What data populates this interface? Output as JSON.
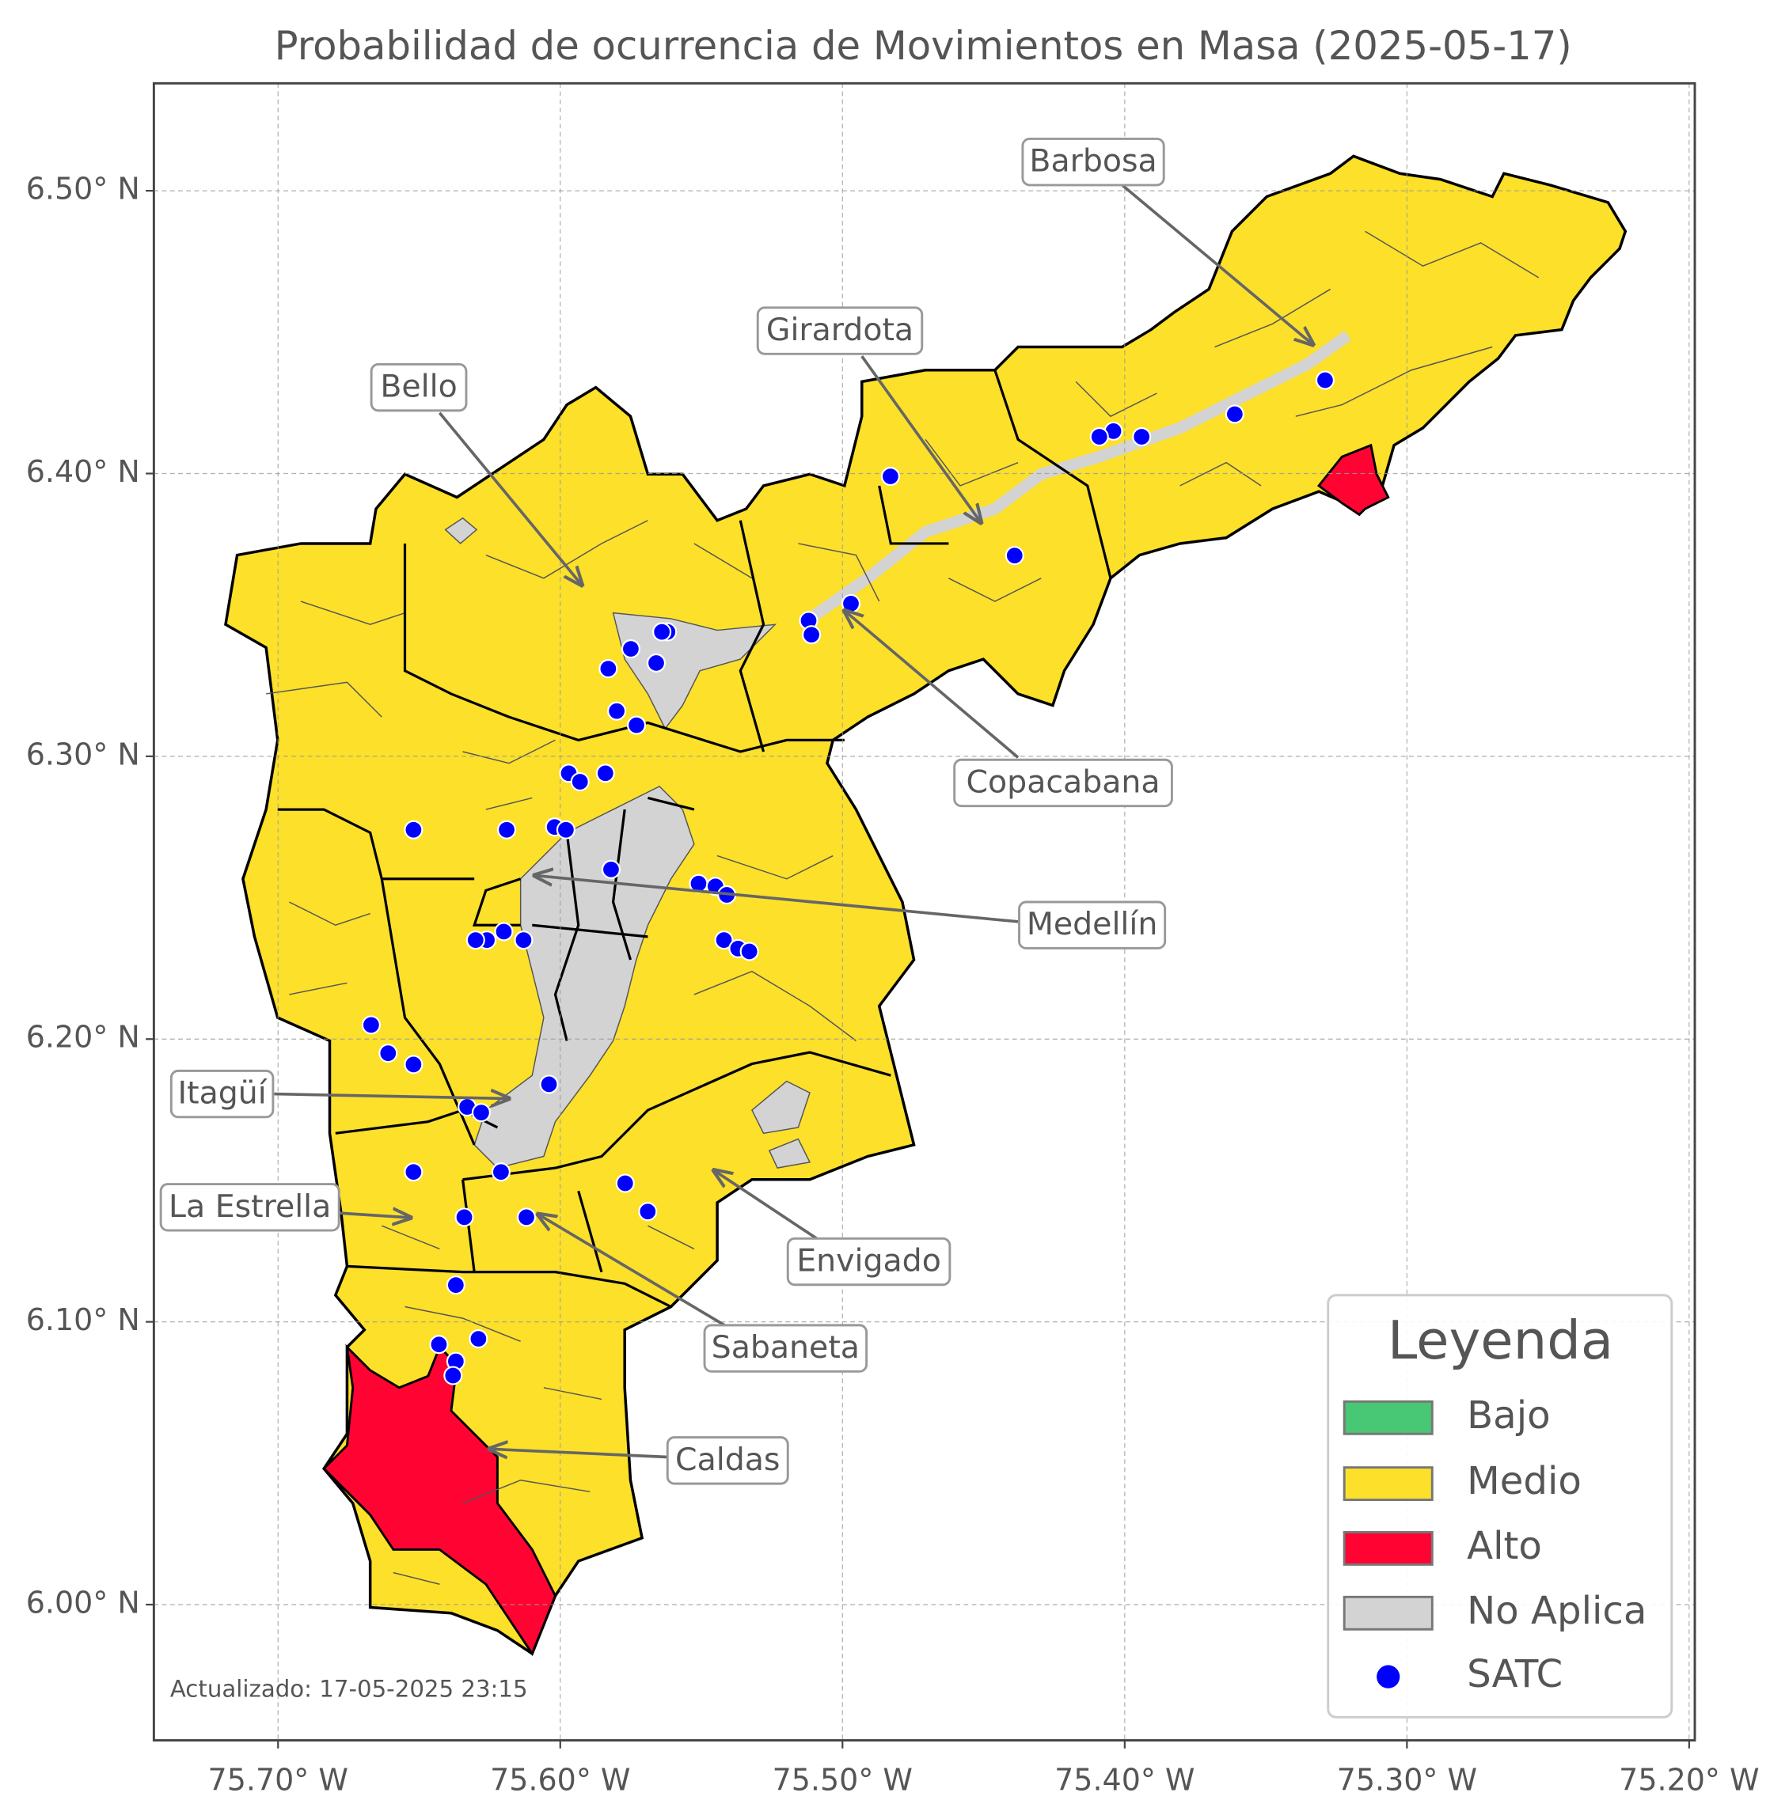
{
  "chart_data": {
    "type": "map",
    "title": "Probabilidad de ocurrencia de Movimientos en Masa (2025-05-17)",
    "xlim": [
      -75.744,
      -75.198
    ],
    "ylim": [
      5.952,
      6.538
    ],
    "xticks": [
      {
        "value": -75.7,
        "label": "75.70° W"
      },
      {
        "value": -75.6,
        "label": "75.60° W"
      },
      {
        "value": -75.5,
        "label": "75.50° W"
      },
      {
        "value": -75.4,
        "label": "75.40° W"
      },
      {
        "value": -75.3,
        "label": "75.30° W"
      },
      {
        "value": -75.2,
        "label": "75.20° W"
      }
    ],
    "yticks": [
      {
        "value": 6.0,
        "label": "6.00° N"
      },
      {
        "value": 6.1,
        "label": "6.10° N"
      },
      {
        "value": 6.2,
        "label": "6.20° N"
      },
      {
        "value": 6.3,
        "label": "6.30° N"
      },
      {
        "value": 6.4,
        "label": "6.40° N"
      },
      {
        "value": 6.5,
        "label": "6.50° N"
      }
    ],
    "grid": true,
    "legend": {
      "title": "Leyenda",
      "position": "lower right",
      "items": [
        {
          "name": "Bajo",
          "color": "#48c774"
        },
        {
          "name": "Medio",
          "color": "#fce02a"
        },
        {
          "name": "Alto",
          "color": "#ff0433"
        },
        {
          "name": "No Aplica",
          "color": "#d3d3d3"
        }
      ]
    },
    "series": [
      {
        "name": "SATC",
        "color": "#0000ff",
        "x": [
          -75.329,
          -75.361,
          -75.394,
          -75.404,
          -75.409,
          -75.483,
          -75.439,
          -75.497,
          -75.512,
          -75.511,
          -75.562,
          -75.564,
          -75.575,
          -75.566,
          -75.583,
          -75.58,
          -75.573,
          -75.597,
          -75.593,
          -75.584,
          -75.652,
          -75.619,
          -75.602,
          -75.598,
          -75.582,
          -75.551,
          -75.545,
          -75.541,
          -75.542,
          -75.537,
          -75.533,
          -75.62,
          -75.626,
          -75.63,
          -75.613,
          -75.667,
          -75.661,
          -75.652,
          -75.604,
          -75.633,
          -75.628,
          -75.652,
          -75.621,
          -75.577,
          -75.569,
          -75.634,
          -75.612,
          -75.637,
          -75.643,
          -75.629,
          -75.637,
          -75.638
        ],
        "y": [
          6.433,
          6.421,
          6.413,
          6.415,
          6.413,
          6.399,
          6.371,
          6.354,
          6.348,
          6.343,
          6.344,
          6.344,
          6.338,
          6.333,
          6.331,
          6.316,
          6.311,
          6.294,
          6.291,
          6.294,
          6.274,
          6.274,
          6.275,
          6.274,
          6.26,
          6.255,
          6.254,
          6.251,
          6.235,
          6.232,
          6.231,
          6.238,
          6.235,
          6.235,
          6.235,
          6.205,
          6.195,
          6.191,
          6.184,
          6.176,
          6.174,
          6.153,
          6.153,
          6.149,
          6.139,
          6.137,
          6.137,
          6.113,
          6.092,
          6.094,
          6.086,
          6.081
        ]
      }
    ],
    "annotations": [
      "Barbosa",
      "Girardota",
      "Bello",
      "Copacabana",
      "Medellín",
      "Itagüí",
      "La Estrella",
      "Envigado",
      "Sabaneta",
      "Caldas"
    ],
    "footnote": "Actualizado: 17-05-2025 23:15"
  }
}
